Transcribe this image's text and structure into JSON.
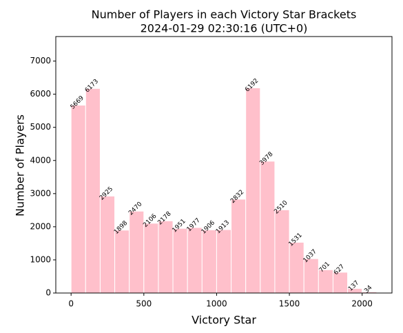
{
  "chart_data": {
    "type": "histogram",
    "title": "Number of Players in each Victory Star Brackets",
    "subtitle": "2024-01-29 02:30:16 (UTC+0)",
    "x_label": "Victory Star",
    "y_label": "Number of Players",
    "bins": [
      0,
      100,
      200,
      300,
      400,
      500,
      600,
      700,
      800,
      900,
      1000,
      1100,
      1200,
      1300,
      1400,
      1500,
      1600,
      1700,
      1800,
      1900,
      2000,
      2100
    ],
    "values": [
      5669,
      6173,
      2925,
      1898,
      2470,
      2106,
      2178,
      1951,
      1977,
      1906,
      1913,
      2832,
      6192,
      3978,
      2510,
      1531,
      1037,
      701,
      627,
      137,
      34
    ],
    "color": "#ffc0cb",
    "edge_color": "#ffffff",
    "xlim": [
      -105,
      2205
    ],
    "xticks": [
      0,
      500,
      1000,
      1500,
      2000
    ],
    "ylim": [
      0,
      7740
    ],
    "yticks": [
      0,
      1000,
      2000,
      3000,
      4000,
      5000,
      6000,
      7000
    ]
  }
}
